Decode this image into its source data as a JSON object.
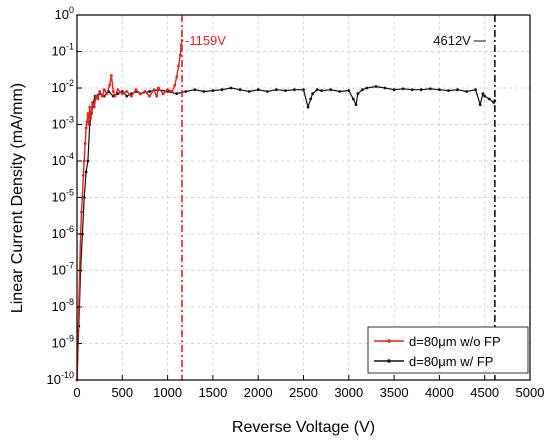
{
  "chart_data": {
    "type": "line",
    "xlabel": "Reverse Voltage (V)",
    "ylabel": "Linear Current Density (mA/mm)",
    "y_scale": "log",
    "xlim": [
      0,
      5000
    ],
    "ylim": [
      1e-10,
      1
    ],
    "grid": true,
    "legend_position": "bottom-right",
    "x_ticks": [
      0,
      500,
      1000,
      1500,
      2000,
      2500,
      3000,
      3500,
      4000,
      4500,
      5000
    ],
    "y_ticks": [
      {
        "base": "10",
        "exp": "-10",
        "value": 1e-10
      },
      {
        "base": "10",
        "exp": "-9",
        "value": 1e-09
      },
      {
        "base": "10",
        "exp": "-8",
        "value": 1e-08
      },
      {
        "base": "10",
        "exp": "-7",
        "value": 1e-07
      },
      {
        "base": "10",
        "exp": "-6",
        "value": 1e-06
      },
      {
        "base": "10",
        "exp": "-5",
        "value": 1e-05
      },
      {
        "base": "10",
        "exp": "-4",
        "value": 0.0001
      },
      {
        "base": "10",
        "exp": "-3",
        "value": 0.001
      },
      {
        "base": "10",
        "exp": "-2",
        "value": 0.01
      },
      {
        "base": "10",
        "exp": "-1",
        "value": 0.1
      },
      {
        "base": "10",
        "exp": "0",
        "value": 1
      }
    ],
    "series": [
      {
        "name": "d=80μm w/o FP",
        "color": "#e8201e",
        "x": [
          0,
          10,
          20,
          30,
          40,
          50,
          60,
          70,
          80,
          90,
          100,
          110,
          120,
          130,
          140,
          150,
          170,
          190,
          210,
          230,
          250,
          280,
          300,
          330,
          360,
          380,
          400,
          420,
          450,
          500,
          550,
          600,
          650,
          700,
          750,
          800,
          850,
          880,
          900,
          950,
          1000,
          1050,
          1080,
          1100,
          1120,
          1140,
          1150,
          1159
        ],
        "y": [
          1e-10,
          1e-09,
          1e-08,
          1e-07,
          1e-06,
          4e-06,
          1e-05,
          4e-05,
          0.0001,
          0.0003,
          0.0008,
          0.0012,
          0.002,
          0.001,
          0.003,
          0.0015,
          0.004,
          0.003,
          0.006,
          0.005,
          0.008,
          0.006,
          0.009,
          0.007,
          0.012,
          0.022,
          0.008,
          0.006,
          0.009,
          0.007,
          0.008,
          0.006,
          0.009,
          0.007,
          0.008,
          0.006,
          0.009,
          0.006,
          0.01,
          0.007,
          0.009,
          0.008,
          0.012,
          0.02,
          0.04,
          0.08,
          0.15,
          0.2
        ]
      },
      {
        "name": "d=80μm w/ FP",
        "color": "#111111",
        "x": [
          0,
          20,
          40,
          60,
          80,
          100,
          120,
          140,
          160,
          180,
          200,
          250,
          300,
          350,
          400,
          450,
          500,
          550,
          600,
          650,
          700,
          800,
          900,
          1000,
          1100,
          1200,
          1300,
          1400,
          1500,
          1600,
          1700,
          1800,
          1900,
          2000,
          2100,
          2200,
          2300,
          2400,
          2500,
          2550,
          2580,
          2600,
          2650,
          2700,
          2800,
          2900,
          3000,
          3050,
          3080,
          3100,
          3150,
          3200,
          3300,
          3400,
          3500,
          3600,
          3700,
          3800,
          3900,
          4000,
          4100,
          4200,
          4300,
          4400,
          4450,
          4480,
          4500,
          4550,
          4600,
          4612
        ],
        "y": [
          1e-10,
          3e-09,
          1e-07,
          1e-06,
          1e-05,
          5e-05,
          0.0001,
          0.001,
          0.002,
          0.004,
          0.006,
          0.007,
          0.006,
          0.008,
          0.006,
          0.007,
          0.008,
          0.006,
          0.007,
          0.008,
          0.007,
          0.008,
          0.009,
          0.008,
          0.007,
          0.008,
          0.009,
          0.008,
          0.0085,
          0.009,
          0.01,
          0.009,
          0.008,
          0.009,
          0.008,
          0.009,
          0.0085,
          0.009,
          0.009,
          0.003,
          0.005,
          0.007,
          0.009,
          0.0085,
          0.009,
          0.008,
          0.0085,
          0.005,
          0.0035,
          0.007,
          0.009,
          0.01,
          0.011,
          0.01,
          0.009,
          0.0095,
          0.009,
          0.009,
          0.0095,
          0.009,
          0.0085,
          0.009,
          0.008,
          0.009,
          0.0035,
          0.007,
          0.006,
          0.005,
          0.004,
          0.0045
        ]
      }
    ],
    "annotations": [
      {
        "text": "-1159V",
        "x": 1159,
        "color": "#e8201e"
      },
      {
        "text": "4612V",
        "x": 4612,
        "color": "#111111"
      }
    ]
  }
}
